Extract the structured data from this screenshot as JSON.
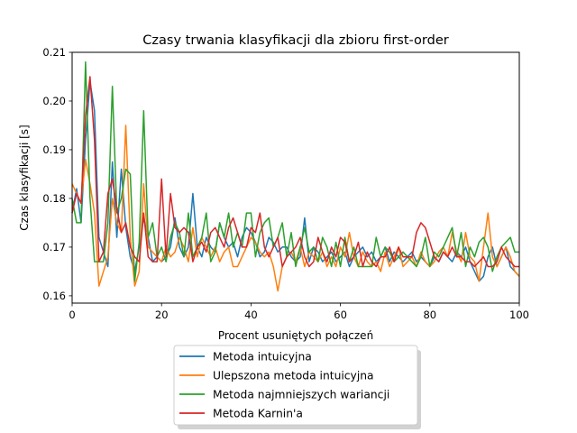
{
  "chart_data": {
    "type": "line",
    "title": "Czasy trwania klasyfikacji dla zbioru first-order",
    "xlabel": "Procent usuniętych połączeń",
    "ylabel": "Czas klasyfikacji [s]",
    "xlim": [
      0,
      100
    ],
    "ylim": [
      0.1585,
      0.21
    ],
    "xticks": [
      0,
      20,
      40,
      60,
      80,
      100
    ],
    "yticks": [
      0.16,
      0.17,
      0.18,
      0.19,
      0.2,
      0.21
    ],
    "ytick_labels": [
      "0.16",
      "0.17",
      "0.18",
      "0.19",
      "0.20",
      "0.21"
    ],
    "grid": false,
    "legend_position": "below-center",
    "x": [
      0,
      1,
      2,
      3,
      4,
      5,
      6,
      7,
      8,
      9,
      10,
      11,
      12,
      13,
      14,
      15,
      16,
      17,
      18,
      19,
      20,
      21,
      22,
      23,
      24,
      25,
      26,
      27,
      28,
      29,
      30,
      31,
      32,
      33,
      34,
      35,
      36,
      37,
      38,
      39,
      40,
      41,
      42,
      43,
      44,
      45,
      46,
      47,
      48,
      49,
      50,
      51,
      52,
      53,
      54,
      55,
      56,
      57,
      58,
      59,
      60,
      61,
      62,
      63,
      64,
      65,
      66,
      67,
      68,
      69,
      70,
      71,
      72,
      73,
      74,
      75,
      76,
      77,
      78,
      79,
      80,
      81,
      82,
      83,
      84,
      85,
      86,
      87,
      88,
      89,
      90,
      91,
      92,
      93,
      94,
      95,
      96,
      97,
      98,
      99,
      100
    ],
    "series": [
      {
        "name": "Metoda intuicyjna",
        "color": "#1f77b4",
        "values": [
          0.177,
          0.182,
          0.175,
          0.192,
          0.204,
          0.198,
          0.172,
          0.169,
          0.166,
          0.1875,
          0.172,
          0.186,
          0.174,
          0.168,
          0.165,
          0.17,
          0.176,
          0.172,
          0.167,
          0.168,
          0.167,
          0.168,
          0.17,
          0.176,
          0.17,
          0.168,
          0.17,
          0.181,
          0.17,
          0.168,
          0.172,
          0.17,
          0.169,
          0.175,
          0.172,
          0.17,
          0.171,
          0.168,
          0.172,
          0.174,
          0.173,
          0.171,
          0.168,
          0.169,
          0.172,
          0.171,
          0.169,
          0.17,
          0.17,
          0.168,
          0.167,
          0.168,
          0.176,
          0.167,
          0.17,
          0.169,
          0.167,
          0.168,
          0.169,
          0.167,
          0.168,
          0.169,
          0.166,
          0.168,
          0.169,
          0.17,
          0.168,
          0.169,
          0.167,
          0.168,
          0.17,
          0.167,
          0.169,
          0.168,
          0.167,
          0.168,
          0.169,
          0.167,
          0.168,
          0.167,
          0.166,
          0.168,
          0.167,
          0.169,
          0.168,
          0.167,
          0.169,
          0.168,
          0.17,
          0.167,
          0.165,
          0.163,
          0.164,
          0.168,
          0.17,
          0.166,
          0.168,
          0.17,
          0.166,
          0.165,
          0.164
        ]
      },
      {
        "name": "Ulepszona metoda intuicyjna",
        "color": "#ff7f0e",
        "values": [
          0.183,
          0.181,
          0.179,
          0.188,
          0.183,
          0.177,
          0.162,
          0.165,
          0.168,
          0.18,
          0.175,
          0.173,
          0.195,
          0.172,
          0.162,
          0.165,
          0.183,
          0.17,
          0.169,
          0.168,
          0.167,
          0.17,
          0.168,
          0.169,
          0.172,
          0.17,
          0.167,
          0.174,
          0.168,
          0.172,
          0.17,
          0.168,
          0.17,
          0.167,
          0.169,
          0.17,
          0.166,
          0.166,
          0.168,
          0.17,
          0.172,
          0.171,
          0.169,
          0.168,
          0.169,
          0.166,
          0.161,
          0.166,
          0.168,
          0.169,
          0.167,
          0.17,
          0.166,
          0.169,
          0.168,
          0.167,
          0.169,
          0.166,
          0.168,
          0.166,
          0.17,
          0.168,
          0.173,
          0.168,
          0.166,
          0.169,
          0.167,
          0.166,
          0.167,
          0.165,
          0.169,
          0.166,
          0.168,
          0.17,
          0.166,
          0.167,
          0.168,
          0.166,
          0.169,
          0.167,
          0.166,
          0.167,
          0.169,
          0.17,
          0.168,
          0.173,
          0.169,
          0.167,
          0.173,
          0.168,
          0.167,
          0.163,
          0.17,
          0.177,
          0.168,
          0.166,
          0.168,
          0.17,
          0.168,
          0.165,
          0.164
        ]
      },
      {
        "name": "Metoda najmniejszych wariancji",
        "color": "#2ca02c",
        "values": [
          0.18,
          0.175,
          0.175,
          0.208,
          0.18,
          0.167,
          0.167,
          0.167,
          0.175,
          0.203,
          0.177,
          0.18,
          0.186,
          0.185,
          0.163,
          0.171,
          0.198,
          0.172,
          0.175,
          0.168,
          0.17,
          0.167,
          0.172,
          0.175,
          0.173,
          0.168,
          0.177,
          0.168,
          0.17,
          0.172,
          0.177,
          0.167,
          0.169,
          0.175,
          0.172,
          0.177,
          0.17,
          0.173,
          0.17,
          0.177,
          0.177,
          0.168,
          0.173,
          0.175,
          0.176,
          0.17,
          0.172,
          0.175,
          0.168,
          0.173,
          0.166,
          0.17,
          0.174,
          0.169,
          0.17,
          0.167,
          0.172,
          0.17,
          0.166,
          0.171,
          0.166,
          0.172,
          0.167,
          0.17,
          0.166,
          0.166,
          0.166,
          0.166,
          0.172,
          0.168,
          0.17,
          0.169,
          0.167,
          0.168,
          0.169,
          0.168,
          0.167,
          0.166,
          0.168,
          0.172,
          0.166,
          0.169,
          0.168,
          0.17,
          0.172,
          0.174,
          0.168,
          0.173,
          0.166,
          0.17,
          0.168,
          0.171,
          0.172,
          0.17,
          0.165,
          0.168,
          0.17,
          0.171,
          0.172,
          0.169,
          0.169
        ]
      },
      {
        "name": "Metoda Karnin'a",
        "color": "#d62728",
        "values": [
          0.177,
          0.181,
          0.179,
          0.197,
          0.205,
          0.192,
          0.167,
          0.169,
          0.181,
          0.184,
          0.178,
          0.173,
          0.175,
          0.17,
          0.168,
          0.167,
          0.177,
          0.168,
          0.167,
          0.167,
          0.184,
          0.168,
          0.181,
          0.174,
          0.173,
          0.174,
          0.173,
          0.167,
          0.17,
          0.171,
          0.169,
          0.173,
          0.174,
          0.172,
          0.17,
          0.174,
          0.176,
          0.173,
          0.17,
          0.17,
          0.174,
          0.173,
          0.177,
          0.17,
          0.168,
          0.17,
          0.172,
          0.166,
          0.168,
          0.169,
          0.17,
          0.172,
          0.168,
          0.166,
          0.167,
          0.172,
          0.169,
          0.167,
          0.17,
          0.168,
          0.172,
          0.171,
          0.167,
          0.168,
          0.171,
          0.166,
          0.169,
          0.167,
          0.166,
          0.168,
          0.168,
          0.17,
          0.167,
          0.17,
          0.168,
          0.168,
          0.168,
          0.173,
          0.175,
          0.174,
          0.171,
          0.168,
          0.167,
          0.169,
          0.168,
          0.17,
          0.168,
          0.168,
          0.167,
          0.167,
          0.166,
          0.167,
          0.168,
          0.166,
          0.166,
          0.167,
          0.17,
          0.168,
          0.167,
          0.166,
          0.166
        ]
      }
    ]
  }
}
